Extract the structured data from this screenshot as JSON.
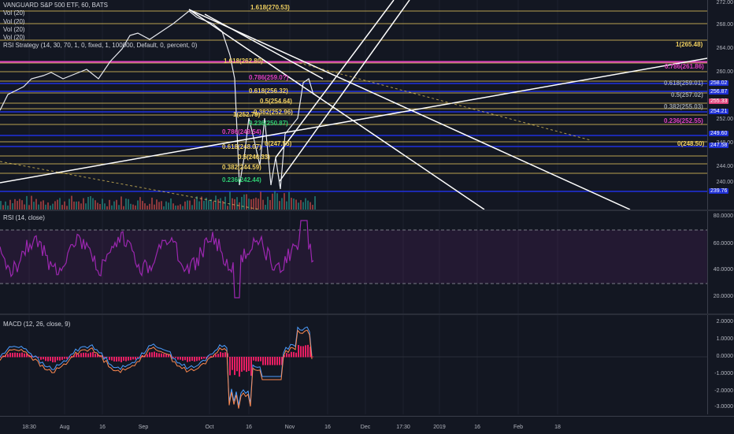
{
  "main": {
    "title": "VANGUARD S&P 500 ETF, 60, BATS",
    "legend_lines": [
      "Vol (20)",
      "Vol (20)",
      "Vol (20)",
      "Vol (20)",
      "RSI Strategy (14, 30, 70, 1, 0, fixed, 1, 100000, Default, 0, percent, 0)"
    ],
    "y_ticks": [
      "272.00",
      "268.00",
      "264.00",
      "260.00",
      "252.00",
      "248.00",
      "244.00",
      "240.00"
    ],
    "price_badges": [
      {
        "text": "258.02",
        "color": "#1e2fd4"
      },
      {
        "text": "256.87",
        "color": "#1e2fd4"
      },
      {
        "text": "255.33",
        "color": "#e0457b"
      },
      {
        "text": "254.21",
        "color": "#1e2fd4"
      },
      {
        "text": "249.60",
        "color": "#1e2fd4"
      },
      {
        "text": "247.58",
        "color": "#1e2fd4"
      },
      {
        "text": "239.76",
        "color": "#1e2fd4"
      }
    ],
    "fib_labels": [
      {
        "text": "1.618(270.53)",
        "color": "#f0d060"
      },
      {
        "text": "1(265.48)",
        "color": "#f0d060"
      },
      {
        "text": "1.618(262.80)",
        "color": "#f0d060"
      },
      {
        "text": "0.786(261.86)",
        "color": "#e040c0"
      },
      {
        "text": "0.786(259.0?)",
        "color": "#e040c0"
      },
      {
        "text": "0.618(259.01)",
        "color": "#9aa0a6"
      },
      {
        "text": "0.618(256.32)",
        "color": "#f0d060"
      },
      {
        "text": "0.5(257.02)",
        "color": "#9aa0a6"
      },
      {
        "text": "0.5(254.64)",
        "color": "#f0d060"
      },
      {
        "text": "0.382(255.03)",
        "color": "#9aa0a6"
      },
      {
        "text": "0.382(252.96)",
        "color": "#f0d060"
      },
      {
        "text": "1(252.79)",
        "color": "#f0d060"
      },
      {
        "text": "0.236(252.55)",
        "color": "#e040c0"
      },
      {
        "text": "0.236(250.87)",
        "color": "#2ecc71"
      },
      {
        "text": "0.786(249.54)",
        "color": "#e040c0"
      },
      {
        "text": "0.618(248.07)",
        "color": "#f0d060"
      },
      {
        "text": "0(247.55)",
        "color": "#f0d060"
      },
      {
        "text": "0(248.50)",
        "color": "#f0d060"
      },
      {
        "text": "0.5(246.33)",
        "color": "#f0d060"
      },
      {
        "text": "0.382(244.59)",
        "color": "#f0d060"
      },
      {
        "text": "0.236(242.44)",
        "color": "#2ecc71"
      }
    ]
  },
  "rsi": {
    "title": "RSI (14, close)",
    "y_ticks": [
      "80.0000",
      "60.0000",
      "40.0000",
      "20.0000"
    ],
    "line_color": "#9c27b0"
  },
  "macd": {
    "title": "MACD (12, 26, close, 9)",
    "y_ticks": [
      "2.0000",
      "1.0000",
      "0.0000",
      "-1.0000",
      "-2.0000",
      "-3.0000"
    ]
  },
  "x_axis": {
    "ticks": [
      "18:30",
      "Aug",
      "16",
      "Sep",
      "Oct",
      "16",
      "Nov",
      "16",
      "Dec",
      "17:30",
      "2019",
      "16",
      "Feb",
      "18"
    ]
  },
  "colors": {
    "background": "#131722",
    "fib_yellow": "#f0d060",
    "fib_magenta": "#e040c0",
    "level_blue": "#2030e0",
    "trend_white": "#ffffff",
    "candle_up": "#26a69a",
    "candle_down": "#ef5350"
  }
}
